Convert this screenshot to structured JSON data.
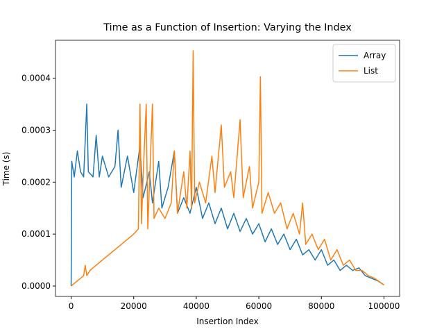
{
  "chart_data": {
    "type": "line",
    "title": "Time as a Function of Insertion: Varying the Index",
    "x_label": "Insertion Index",
    "y_label": "Time (s)",
    "xlim": [
      -5000,
      105000
    ],
    "ylim": [
      -2e-05,
      0.000473
    ],
    "xticks": [
      0,
      20000,
      40000,
      60000,
      80000,
      100000
    ],
    "yticks": [
      {
        "value": 0,
        "label": "0.0000"
      },
      {
        "value": 0.0001,
        "label": "0.0001"
      },
      {
        "value": 0.0002,
        "label": "0.0002"
      },
      {
        "value": 0.0003,
        "label": "0.0003"
      },
      {
        "value": 0.0004,
        "label": "0.0004"
      }
    ],
    "legend": "upper right",
    "series": [
      {
        "name": "Array",
        "color": "#1f77b4",
        "x": [
          0,
          200,
          1000,
          2000,
          3000,
          4000,
          5000,
          5500,
          7000,
          8000,
          9000,
          10000,
          12000,
          14000,
          15000,
          16000,
          18000,
          20000,
          22000,
          23000,
          25000,
          26000,
          28000,
          29000,
          31000,
          33000,
          34000,
          36000,
          38000,
          40000,
          42000,
          44000,
          46000,
          48000,
          50000,
          52000,
          54000,
          56000,
          58000,
          60000,
          62000,
          64000,
          66000,
          68000,
          70000,
          72000,
          74000,
          76000,
          78000,
          80000,
          82000,
          84000,
          86000,
          88000,
          90000,
          92000,
          94000,
          96000,
          98000,
          100000
        ],
        "values": [
          0,
          0.00024,
          0.00021,
          0.00026,
          0.00022,
          0.00021,
          0.00035,
          0.00022,
          0.00021,
          0.00029,
          0.00021,
          0.00025,
          0.00021,
          0.00023,
          0.0003,
          0.00019,
          0.00025,
          0.00018,
          0.00027,
          0.00017,
          0.00022,
          0.00016,
          0.00024,
          0.00015,
          0.00019,
          0.00026,
          0.00014,
          0.00017,
          0.00014,
          0.00019,
          0.00013,
          0.00016,
          0.00012,
          0.00015,
          0.00011,
          0.00014,
          0.000105,
          0.00013,
          0.0001,
          0.00012,
          8.5e-05,
          0.00011,
          8e-05,
          0.0001,
          7e-05,
          9e-05,
          6e-05,
          7e-05,
          5e-05,
          7e-05,
          4e-05,
          5e-05,
          3e-05,
          4e-05,
          3e-05,
          3.5e-05,
          2e-05,
          1.5e-05,
          1e-05,
          2e-06
        ]
      },
      {
        "name": "List",
        "color": "#ff7f0e",
        "x": [
          0,
          2000,
          4000,
          4500,
          5000,
          6000,
          8000,
          10000,
          12000,
          14000,
          16000,
          18000,
          20000,
          21500,
          22000,
          22500,
          23000,
          24000,
          24500,
          26000,
          26500,
          28000,
          30000,
          32000,
          33000,
          34000,
          36000,
          37000,
          38000,
          38500,
          39000,
          39500,
          41000,
          43000,
          45000,
          46000,
          48000,
          49000,
          51000,
          52000,
          54000,
          55000,
          57000,
          58000,
          60000,
          60500,
          61000,
          63000,
          65000,
          67000,
          69000,
          71000,
          73000,
          74000,
          75000,
          77000,
          79000,
          81000,
          83000,
          85000,
          87000,
          89000,
          91000,
          93000,
          95000,
          97000,
          100000
        ],
        "values": [
          0,
          1e-05,
          2e-05,
          4e-05,
          2e-05,
          3e-05,
          4e-05,
          5e-05,
          6e-05,
          7e-05,
          8e-05,
          9e-05,
          0.0001,
          0.00011,
          0.00035,
          0.00012,
          0.00021,
          0.00035,
          0.00011,
          0.00035,
          0.00013,
          0.00015,
          0.00013,
          0.00016,
          0.00026,
          0.00014,
          0.00022,
          0.00015,
          0.00026,
          0.00015,
          0.000453,
          0.00016,
          0.0002,
          0.00016,
          0.00025,
          0.00018,
          0.00031,
          0.00019,
          0.00022,
          0.00017,
          0.00032,
          0.00017,
          0.00023,
          0.00015,
          0.0002,
          0.000403,
          0.00014,
          0.00018,
          0.00014,
          0.00016,
          0.00011,
          0.00014,
          0.0001,
          0.00016,
          8e-05,
          0.0001,
          7e-05,
          9e-05,
          5e-05,
          7e-05,
          4e-05,
          5e-05,
          3e-05,
          3e-05,
          2e-05,
          1.5e-05,
          2e-06
        ]
      }
    ]
  }
}
